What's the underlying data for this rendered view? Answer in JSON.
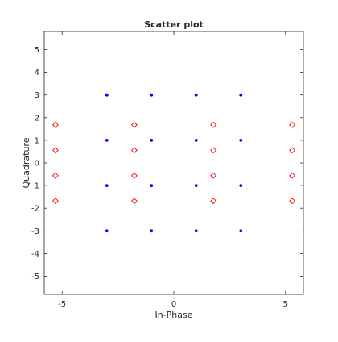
{
  "chart_data": {
    "type": "scatter",
    "title": "Scatter plot",
    "xlabel": "In-Phase",
    "ylabel": "Quadrature",
    "xlim": [
      -5.8,
      5.8
    ],
    "ylim": [
      -5.8,
      5.8
    ],
    "xticks": [
      -5,
      0,
      5
    ],
    "yticks": [
      -5,
      -4,
      -3,
      -2,
      -1,
      0,
      1,
      2,
      3,
      4,
      5
    ],
    "grid": false,
    "legend": "none",
    "series": [
      {
        "marker": "dot",
        "color": "#0000ff",
        "points": [
          [
            -3,
            3
          ],
          [
            -1,
            3
          ],
          [
            1,
            3
          ],
          [
            3,
            3
          ],
          [
            -3,
            1
          ],
          [
            -1,
            1
          ],
          [
            1,
            1
          ],
          [
            3,
            1
          ],
          [
            -3,
            -1
          ],
          [
            -1,
            -1
          ],
          [
            1,
            -1
          ],
          [
            3,
            -1
          ],
          [
            -3,
            -3
          ],
          [
            -1,
            -3
          ],
          [
            1,
            -3
          ],
          [
            3,
            -3
          ]
        ]
      },
      {
        "marker": "diamond",
        "color": "#ff0000",
        "points": [
          [
            -5.3,
            1.68
          ],
          [
            -5.3,
            0.56
          ],
          [
            -5.3,
            -0.56
          ],
          [
            -5.3,
            -1.68
          ],
          [
            -1.77,
            1.68
          ],
          [
            -1.77,
            0.56
          ],
          [
            -1.77,
            -0.56
          ],
          [
            -1.77,
            -1.68
          ],
          [
            1.77,
            1.68
          ],
          [
            1.77,
            0.56
          ],
          [
            1.77,
            -0.56
          ],
          [
            1.77,
            -1.68
          ],
          [
            5.3,
            1.68
          ],
          [
            5.3,
            0.56
          ],
          [
            5.3,
            -0.56
          ],
          [
            5.3,
            -1.68
          ]
        ]
      }
    ]
  }
}
